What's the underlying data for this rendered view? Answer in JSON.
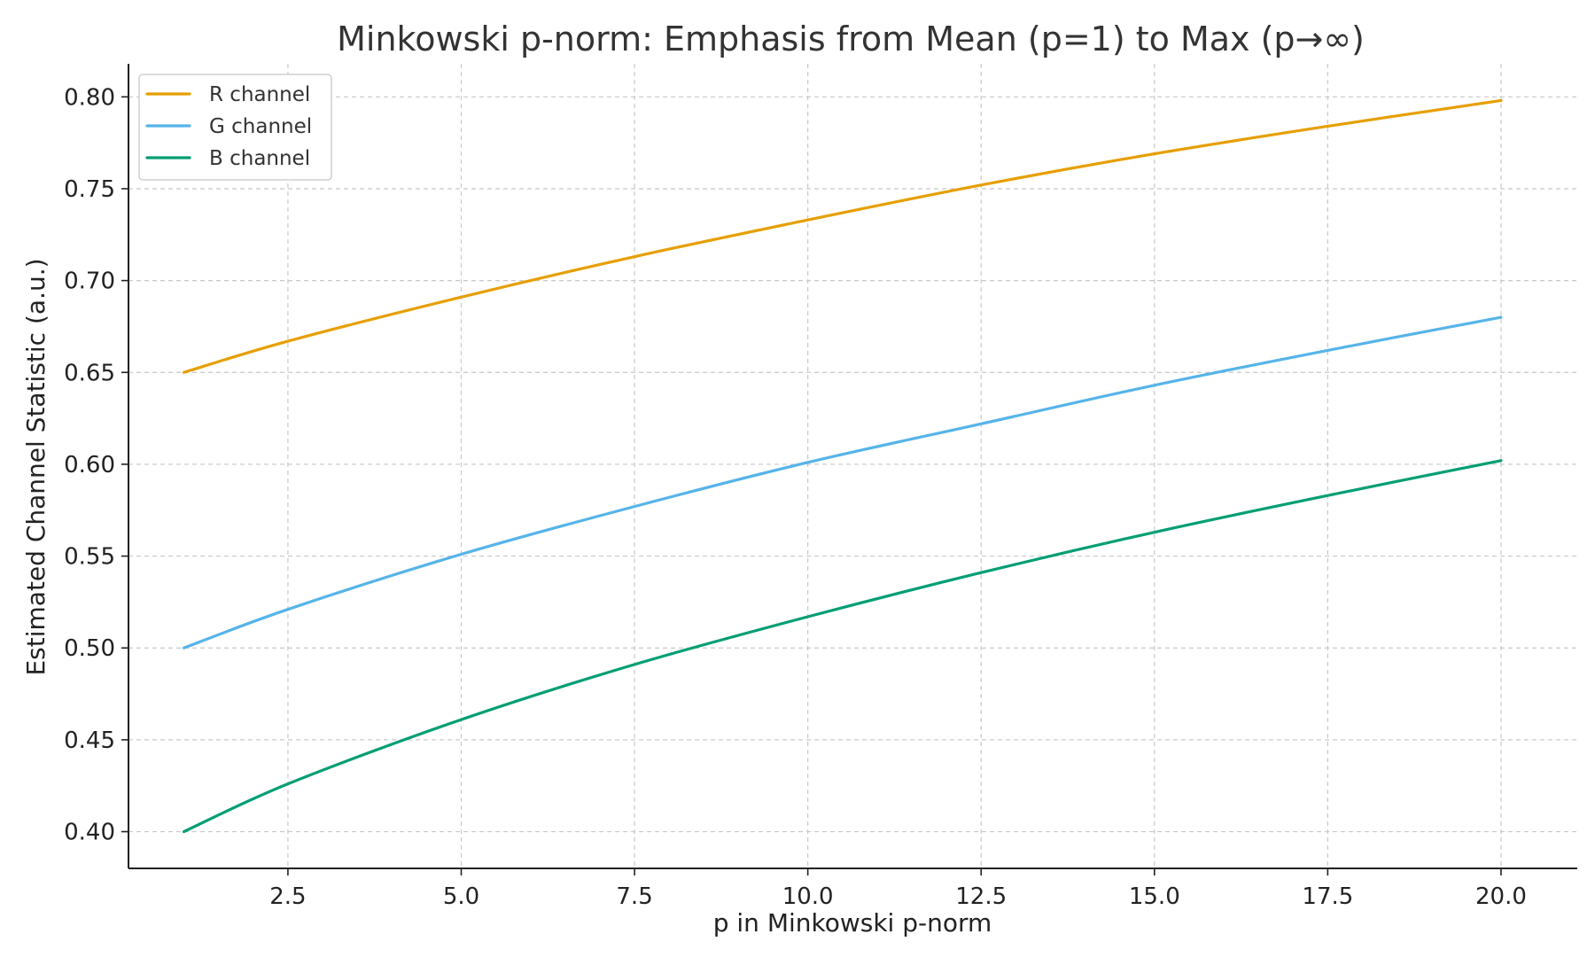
{
  "chart_data": {
    "type": "line",
    "title": "Minkowski p-norm: Emphasis from Mean (p=1) to Max (p→∞)",
    "xlabel": "p in Minkowski p-norm",
    "ylabel": "Estimated Channel Statistic (a.u.)",
    "xlim": [
      0.2,
      21.1
    ],
    "ylim": [
      0.38,
      0.818
    ],
    "x_ticks": [
      2.5,
      5.0,
      7.5,
      10.0,
      12.5,
      15.0,
      17.5,
      20.0
    ],
    "x_tick_labels": [
      "2.5",
      "5.0",
      "7.5",
      "10.0",
      "12.5",
      "15.0",
      "17.5",
      "20.0"
    ],
    "y_ticks": [
      0.4,
      0.45,
      0.5,
      0.55,
      0.6,
      0.65,
      0.7,
      0.75,
      0.8
    ],
    "y_tick_labels": [
      "0.40",
      "0.45",
      "0.50",
      "0.55",
      "0.60",
      "0.65",
      "0.70",
      "0.75",
      "0.80"
    ],
    "grid": true,
    "legend_position": "top-left",
    "x": [
      1,
      2.5,
      5,
      7.5,
      10,
      12.5,
      15,
      17.5,
      20
    ],
    "series": [
      {
        "name": "R channel",
        "color": "#E69F00",
        "values": [
          0.65,
          0.667,
          0.691,
          0.713,
          0.733,
          0.752,
          0.769,
          0.784,
          0.798
        ]
      },
      {
        "name": "G channel",
        "color": "#56B4E9",
        "values": [
          0.5,
          0.521,
          0.551,
          0.577,
          0.601,
          0.622,
          0.643,
          0.662,
          0.68
        ]
      },
      {
        "name": "B channel",
        "color": "#009E73",
        "values": [
          0.4,
          0.426,
          0.461,
          0.491,
          0.517,
          0.541,
          0.563,
          0.583,
          0.602
        ]
      }
    ]
  }
}
